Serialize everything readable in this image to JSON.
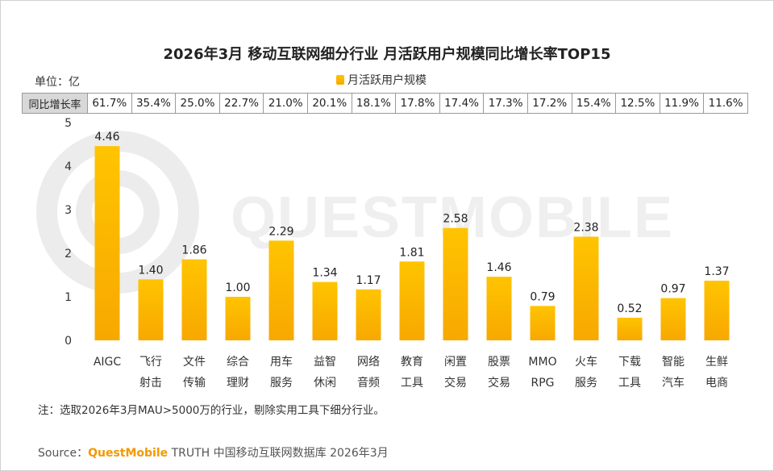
{
  "header": {
    "title": "2026年3月 移动互联网细分行业 月活跃用户规模同比增长率TOP15"
  },
  "unit_label": "单位：亿",
  "legend_label": "月活跃用户规模",
  "yoy_row_label": "同比增长率",
  "watermark_text": "QUESTMOBILE",
  "chart_data": {
    "type": "bar",
    "title": "2026年3月 移动互联网细分行业 月活跃用户规模同比增长率TOP15",
    "ylabel": "单位：亿",
    "ylim": [
      0,
      5
    ],
    "yticks": [
      "0",
      "1",
      "2",
      "3",
      "4",
      "5"
    ],
    "series": [
      {
        "name": "月活跃用户规模",
        "values": [
          4.46,
          1.4,
          1.86,
          1.0,
          2.29,
          1.34,
          1.17,
          1.81,
          2.58,
          1.46,
          0.79,
          2.38,
          0.52,
          0.97,
          1.37
        ]
      }
    ],
    "value_labels": [
      "4.46",
      "1.40",
      "1.86",
      "1.00",
      "2.29",
      "1.34",
      "1.17",
      "1.81",
      "2.58",
      "1.46",
      "0.79",
      "2.38",
      "0.52",
      "0.97",
      "1.37"
    ],
    "categories": [
      [
        "AIGC"
      ],
      [
        "飞行",
        "射击"
      ],
      [
        "文件",
        "传输"
      ],
      [
        "综合",
        "理财"
      ],
      [
        "用车",
        "服务"
      ],
      [
        "益智",
        "休闲"
      ],
      [
        "网络",
        "音频"
      ],
      [
        "教育",
        "工具"
      ],
      [
        "闲置",
        "交易"
      ],
      [
        "股票",
        "交易"
      ],
      [
        "MMO",
        "RPG"
      ],
      [
        "火车",
        "服务"
      ],
      [
        "下载",
        "工具"
      ],
      [
        "智能",
        "汽车"
      ],
      [
        "生鲜",
        "电商"
      ]
    ],
    "yoy_growth": [
      "61.7%",
      "35.4%",
      "25.0%",
      "22.7%",
      "21.0%",
      "20.1%",
      "18.1%",
      "17.8%",
      "17.4%",
      "17.3%",
      "17.2%",
      "15.4%",
      "12.5%",
      "11.9%",
      "11.6%"
    ],
    "bar_color_top": "#ffc400",
    "bar_color_bottom": "#f7a800"
  },
  "footer": {
    "note": "注：选取2026年3月MAU>5000万的行业，剔除实用工具下细分行业。",
    "source_prefix": "Source：",
    "source_brand": "QuestMobile",
    "source_suffix": " TRUTH 中国移动互联网数据库 2026年3月"
  }
}
